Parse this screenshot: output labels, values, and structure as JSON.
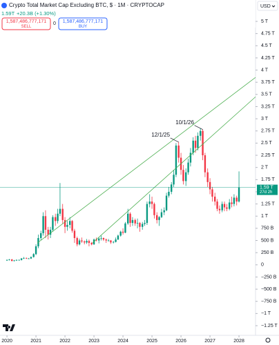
{
  "header": {
    "title": "Crypto Total Market Cap Excluding BTC, $ · 1M · CRYPTOCAP",
    "quote": "1.59T",
    "change": "+20.3B (+1.30%)",
    "sell_price": "1,587,486,777,171",
    "sell": "SELL",
    "spread": "0",
    "buy_price": "1,587,486,777,171",
    "buy": "BUY",
    "currency": "USD",
    "price_label": "1.59 T",
    "countdown": "27d 2h"
  },
  "chart_data": {
    "type": "candlestick",
    "up_color": "#089981",
    "down_color": "#f23645",
    "line_color": "#4caf50",
    "xlim": [
      2019.76,
      2028.57
    ],
    "xticks": [
      2020,
      2021,
      2022,
      2023,
      2024,
      2025,
      2026,
      2027,
      2028
    ],
    "ylim": [
      -1.25,
      5
    ],
    "yticks": [
      {
        "value": 5,
        "label": "5 T"
      },
      {
        "value": 4.75,
        "label": "4.75 T"
      },
      {
        "value": 4.5,
        "label": "4.5 T"
      },
      {
        "value": 4.25,
        "label": "4.25 T"
      },
      {
        "value": 4,
        "label": "4 T"
      },
      {
        "value": 3.75,
        "label": "3.75 T"
      },
      {
        "value": 3.5,
        "label": "3.5 T"
      },
      {
        "value": 3.25,
        "label": "3.25 T"
      },
      {
        "value": 3,
        "label": "3 T"
      },
      {
        "value": 2.75,
        "label": "2.75 T"
      },
      {
        "value": 2.5,
        "label": "2.5 T"
      },
      {
        "value": 2.25,
        "label": "2.25 T"
      },
      {
        "value": 2,
        "label": "2 T"
      },
      {
        "value": 1.75,
        "label": "1.75 T"
      },
      {
        "value": 1.5,
        "label": "1.5 T"
      },
      {
        "value": 1.25,
        "label": "1.25 T"
      },
      {
        "value": 1,
        "label": "1 T"
      },
      {
        "value": 0.75,
        "label": "750 B"
      },
      {
        "value": 0.5,
        "label": "500 B"
      },
      {
        "value": 0.25,
        "label": "250 B"
      },
      0,
      {
        "value": -0.25,
        "label": "−250 B"
      },
      {
        "value": -0.5,
        "label": "−500 B"
      },
      {
        "value": -0.75,
        "label": "−750 B"
      },
      {
        "value": -1,
        "label": "−1 T"
      },
      {
        "value": -1.25,
        "label": "−1.25 T"
      }
    ],
    "x": [
      2020,
      2020.08,
      2020.17,
      2020.25,
      2020.33,
      2020.42,
      2020.5,
      2020.58,
      2020.67,
      2020.75,
      2020.83,
      2020.92,
      2021,
      2021.08,
      2021.17,
      2021.25,
      2021.33,
      2021.42,
      2021.5,
      2021.58,
      2021.67,
      2021.75,
      2021.83,
      2021.92,
      2022,
      2022.08,
      2022.17,
      2022.25,
      2022.33,
      2022.42,
      2022.5,
      2022.58,
      2022.67,
      2022.75,
      2022.83,
      2022.92,
      2023,
      2023.08,
      2023.17,
      2023.25,
      2023.33,
      2023.42,
      2023.5,
      2023.58,
      2023.67,
      2023.75,
      2023.83,
      2023.92,
      2024,
      2024.08,
      2024.17,
      2024.25,
      2024.33,
      2024.42,
      2024.5,
      2024.58,
      2024.67,
      2024.75,
      2024.83,
      2024.92,
      2025,
      2025.08,
      2025.17,
      2025.25,
      2025.33,
      2025.42,
      2025.5,
      2025.58,
      2025.67,
      2025.75,
      2025.83,
      2025.92,
      2026,
      2026.08,
      2026.17,
      2026.25,
      2026.33,
      2026.42,
      2026.5,
      2026.58,
      2026.67,
      2026.75,
      2026.83,
      2026.92,
      2027,
      2027.08,
      2027.17,
      2027.25,
      2027.33,
      2027.42,
      2027.5,
      2027.58,
      2027.67,
      2027.75,
      2027.83,
      2027.92,
      2028
    ],
    "open": [
      0.09,
      0.1,
      0.11,
      0.08,
      0.09,
      0.1,
      0.1,
      0.13,
      0.14,
      0.13,
      0.13,
      0.16,
      0.22,
      0.38,
      0.55,
      0.65,
      1.0,
      0.72,
      0.62,
      0.72,
      0.98,
      0.9,
      1.05,
      1.15,
      0.92,
      0.78,
      0.82,
      0.9,
      0.7,
      0.55,
      0.42,
      0.5,
      0.48,
      0.46,
      0.49,
      0.45,
      0.42,
      0.52,
      0.5,
      0.54,
      0.55,
      0.52,
      0.5,
      0.5,
      0.46,
      0.47,
      0.52,
      0.6,
      0.68,
      0.66,
      0.85,
      1.05,
      0.86,
      0.92,
      0.85,
      0.86,
      0.78,
      0.84,
      0.86,
      1.25,
      1.3,
      1.25,
      1.02,
      0.92,
      0.98,
      1.08,
      1.12,
      1.42,
      1.5,
      1.65,
      1.85,
      2.45,
      2.2,
      1.95,
      1.72,
      1.9,
      2.1,
      2.3,
      2.55,
      2.4,
      2.65,
      2.75,
      2.25,
      1.9,
      1.7,
      1.55,
      1.4,
      1.3,
      1.15,
      1.12,
      1.25,
      1.18,
      1.15,
      1.28,
      1.25,
      1.38,
      1.3
    ],
    "high": [
      0.11,
      0.12,
      0.12,
      0.1,
      0.11,
      0.11,
      0.14,
      0.16,
      0.15,
      0.14,
      0.17,
      0.24,
      0.42,
      0.62,
      0.7,
      1.08,
      1.12,
      0.78,
      0.78,
      1.02,
      1.05,
      1.15,
      1.68,
      1.25,
      0.98,
      0.9,
      0.98,
      0.92,
      0.74,
      0.58,
      0.54,
      0.56,
      0.5,
      0.53,
      0.52,
      0.47,
      0.54,
      0.56,
      0.56,
      0.6,
      0.56,
      0.54,
      0.53,
      0.51,
      0.49,
      0.56,
      0.62,
      0.7,
      0.75,
      0.88,
      1.15,
      1.08,
      0.98,
      0.95,
      0.95,
      0.88,
      0.88,
      0.92,
      1.3,
      1.45,
      1.4,
      1.28,
      1.08,
      1.0,
      1.15,
      1.18,
      1.48,
      1.6,
      1.7,
      1.95,
      2.5,
      2.52,
      2.3,
      2.05,
      1.98,
      2.18,
      2.4,
      2.62,
      2.65,
      2.72,
      2.8,
      2.78,
      2.3,
      1.98,
      1.78,
      1.6,
      1.48,
      1.35,
      1.22,
      1.3,
      1.3,
      1.25,
      1.35,
      1.4,
      1.45,
      1.42,
      1.92
    ],
    "low": [
      0.08,
      0.09,
      0.07,
      0.07,
      0.08,
      0.09,
      0.09,
      0.12,
      0.12,
      0.12,
      0.12,
      0.15,
      0.2,
      0.34,
      0.5,
      0.6,
      0.55,
      0.52,
      0.55,
      0.68,
      0.8,
      0.85,
      1.0,
      0.85,
      0.65,
      0.7,
      0.75,
      0.66,
      0.45,
      0.38,
      0.4,
      0.45,
      0.42,
      0.43,
      0.38,
      0.4,
      0.41,
      0.48,
      0.44,
      0.5,
      0.49,
      0.45,
      0.48,
      0.43,
      0.44,
      0.46,
      0.51,
      0.58,
      0.62,
      0.65,
      0.82,
      0.78,
      0.8,
      0.8,
      0.75,
      0.68,
      0.72,
      0.8,
      0.82,
      1.18,
      1.15,
      0.95,
      0.85,
      0.8,
      0.96,
      1.02,
      1.1,
      1.38,
      1.45,
      1.6,
      1.8,
      2.1,
      1.85,
      1.65,
      1.62,
      1.85,
      2.02,
      2.25,
      2.3,
      2.35,
      2.55,
      2.15,
      1.8,
      1.6,
      1.45,
      1.3,
      1.22,
      1.1,
      1.05,
      1.08,
      1.1,
      1.1,
      1.12,
      1.18,
      1.2,
      1.22,
      1.28
    ],
    "close": [
      0.1,
      0.11,
      0.08,
      0.09,
      0.1,
      0.1,
      0.13,
      0.14,
      0.13,
      0.13,
      0.16,
      0.22,
      0.38,
      0.55,
      0.65,
      1.0,
      0.72,
      0.62,
      0.72,
      0.98,
      0.9,
      1.05,
      1.15,
      0.92,
      0.78,
      0.82,
      0.9,
      0.7,
      0.55,
      0.42,
      0.5,
      0.48,
      0.46,
      0.49,
      0.45,
      0.42,
      0.52,
      0.5,
      0.54,
      0.55,
      0.52,
      0.5,
      0.5,
      0.46,
      0.47,
      0.52,
      0.6,
      0.68,
      0.66,
      0.85,
      1.05,
      0.86,
      0.92,
      0.85,
      0.86,
      0.78,
      0.84,
      0.86,
      1.25,
      1.3,
      1.25,
      1.02,
      0.92,
      0.98,
      1.08,
      1.12,
      1.42,
      1.5,
      1.65,
      1.85,
      2.45,
      2.2,
      1.95,
      1.72,
      1.9,
      2.1,
      2.3,
      2.55,
      2.4,
      2.65,
      2.75,
      2.25,
      1.9,
      1.7,
      1.55,
      1.4,
      1.3,
      1.15,
      1.12,
      1.25,
      1.18,
      1.15,
      1.28,
      1.25,
      1.38,
      1.3,
      1.59
    ],
    "trendlines": [
      {
        "x": [
          2021.05,
          2028.57
        ],
        "y": [
          0.45,
          3.85
        ]
      },
      {
        "x": [
          2022.95,
          2028.57
        ],
        "y": [
          0.45,
          3.45
        ]
      }
    ],
    "annotations": [
      {
        "text": "12/1/25",
        "x": 2025.92,
        "y": 2.52
      },
      {
        "text": "10/1/26",
        "x": 2026.75,
        "y": 2.78
      }
    ]
  }
}
